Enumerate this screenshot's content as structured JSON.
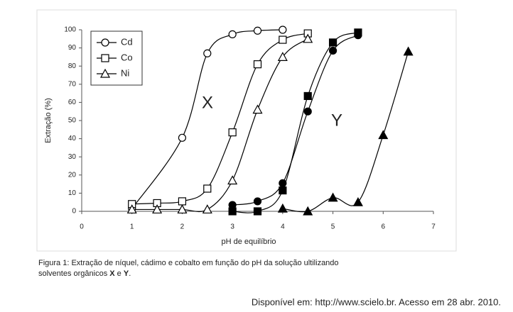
{
  "chart_data": {
    "type": "line",
    "xlabel": "pH de equilíbrio",
    "ylabel": "Extração (%)",
    "xlim": [
      0,
      7
    ],
    "xticks": [
      0,
      1,
      2,
      3,
      4,
      5,
      6,
      7
    ],
    "ylim": [
      0,
      100
    ],
    "yticks": [
      0,
      10,
      20,
      30,
      40,
      50,
      60,
      70,
      80,
      90,
      100
    ],
    "grid": false,
    "legend": "upper left",
    "annotations": [
      "X",
      "Y"
    ],
    "series": [
      {
        "name": "Cd",
        "color": "#000000",
        "marker": "circle",
        "filled": false,
        "x": [
          1,
          2,
          2.5,
          3,
          3.5,
          4
        ],
        "values": [
          1.5,
          40.5,
          87,
          97.5,
          99.5,
          100
        ]
      },
      {
        "name": "Co",
        "color": "#000000",
        "marker": "square",
        "filled": false,
        "x": [
          1,
          1.5,
          2,
          2.5,
          3,
          3.5,
          4,
          4.5
        ],
        "values": [
          4,
          4.5,
          5.5,
          12.5,
          43.5,
          81,
          94.5,
          98
        ]
      },
      {
        "name": "Ni",
        "color": "#000000",
        "marker": "triangle",
        "filled": false,
        "x": [
          1,
          1.5,
          2,
          2.5,
          3,
          3.5,
          4,
          4.5
        ],
        "values": [
          1,
          1,
          1,
          1,
          17,
          56,
          85,
          95
        ]
      },
      {
        "color": "#000000",
        "marker": "circle",
        "filled": true,
        "x": [
          3,
          3.5,
          4,
          4.5,
          5,
          5.5
        ],
        "values": [
          3.5,
          5.5,
          15.5,
          55,
          88.5,
          97
        ]
      },
      {
        "color": "#000000",
        "marker": "square",
        "filled": true,
        "x": [
          3,
          3.5,
          4,
          4.5,
          5,
          5.5
        ],
        "values": [
          0,
          0,
          11.5,
          63.5,
          93,
          98.5
        ]
      },
      {
        "color": "#000000",
        "marker": "triangle",
        "filled": true,
        "x": [
          4,
          4.5,
          5,
          5.5,
          6,
          6.5
        ],
        "values": [
          1.5,
          0,
          7.5,
          5,
          42,
          88
        ]
      }
    ],
    "caption": [
      "Figura 1: Extração de níquel, cádimo e cobalto em função do pH da solução ultilizando",
      "solventes orgânicos ",
      "X",
      " e ",
      "Y",
      "."
    ],
    "source": "Disponível em: http://www.scielo.br. Acesso em 28 abr. 2010."
  }
}
